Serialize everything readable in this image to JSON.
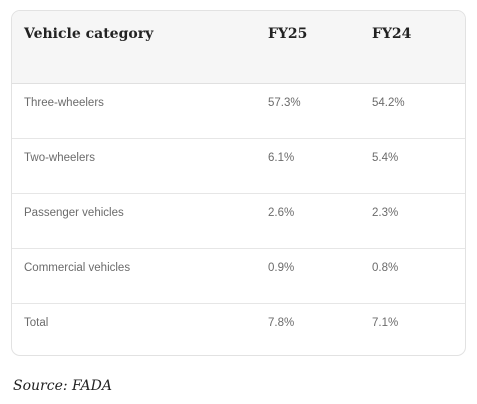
{
  "table": {
    "headers": [
      "Vehicle category",
      "FY25",
      "FY24"
    ],
    "rows": [
      [
        "Three-wheelers",
        "57.3%",
        "54.2%"
      ],
      [
        "Two-wheelers",
        "6.1%",
        "5.4%"
      ],
      [
        "Passenger vehicles",
        "2.6%",
        "2.3%"
      ],
      [
        "Commercial vehicles",
        "0.9%",
        "0.8%"
      ],
      [
        "Total",
        "7.8%",
        "7.1%"
      ]
    ]
  },
  "source": "Source: FADA"
}
